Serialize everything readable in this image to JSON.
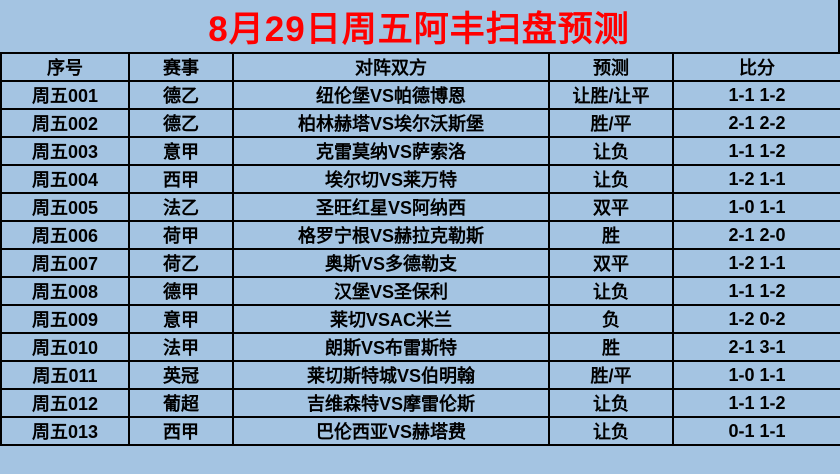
{
  "title": "8月29日周五阿丰扫盘预测",
  "colors": {
    "background": "#a4c4e2",
    "title_text": "#ff0000",
    "grid_border": "#000000",
    "cell_text": "#000000"
  },
  "table": {
    "headers": [
      "序号",
      "赛事",
      "对阵双方",
      "预测",
      "比分"
    ],
    "rows": [
      [
        "周五001",
        "德乙",
        "纽伦堡VS帕德博恩",
        "让胜/让平",
        "1-1 1-2"
      ],
      [
        "周五002",
        "德乙",
        "柏林赫塔VS埃尔沃斯堡",
        "胜/平",
        "2-1 2-2"
      ],
      [
        "周五003",
        "意甲",
        "克雷莫纳VS萨索洛",
        "让负",
        "1-1 1-2"
      ],
      [
        "周五004",
        "西甲",
        "埃尔切VS莱万特",
        "让负",
        "1-2 1-1"
      ],
      [
        "周五005",
        "法乙",
        "圣旺红星VS阿纳西",
        "双平",
        "1-0 1-1"
      ],
      [
        "周五006",
        "荷甲",
        "格罗宁根VS赫拉克勒斯",
        "胜",
        "2-1 2-0"
      ],
      [
        "周五007",
        "荷乙",
        "奥斯VS多德勒支",
        "双平",
        "1-2 1-1"
      ],
      [
        "周五008",
        "德甲",
        "汉堡VS圣保利",
        "让负",
        "1-1 1-2"
      ],
      [
        "周五009",
        "意甲",
        "莱切VSAC米兰",
        "负",
        "1-2 0-2"
      ],
      [
        "周五010",
        "法甲",
        "朗斯VS布雷斯特",
        "胜",
        "2-1 3-1"
      ],
      [
        "周五011",
        "英冠",
        "莱切斯特城VS伯明翰",
        "胜/平",
        "1-0 1-1"
      ],
      [
        "周五012",
        "葡超",
        "吉维森特VS摩雷伦斯",
        "让负",
        "1-1 1-2"
      ],
      [
        "周五013",
        "西甲",
        "巴伦西亚VS赫塔费",
        "让负",
        "0-1 1-1"
      ]
    ]
  }
}
